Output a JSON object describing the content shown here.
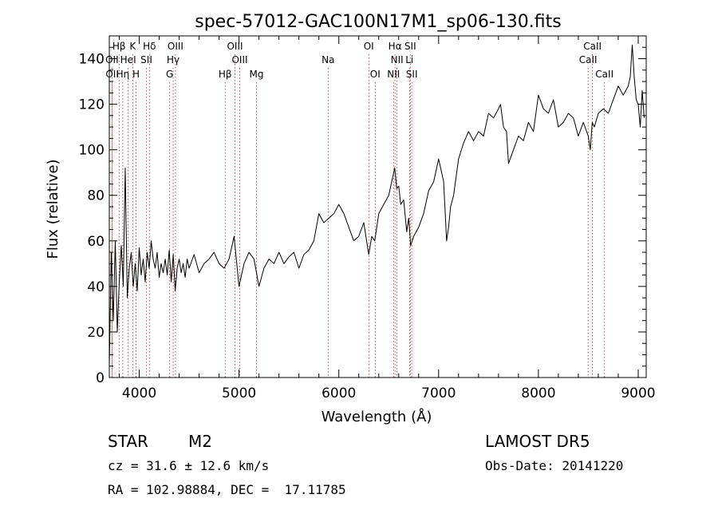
{
  "chart_data": {
    "type": "line",
    "title": "spec-57012-GAC100N17M1_sp06-130.fits",
    "xlabel": "Wavelength (Å)",
    "ylabel": "Flux (relative)",
    "xlim": [
      3700,
      9080
    ],
    "ylim": [
      0,
      150
    ],
    "xticks": [
      4000,
      5000,
      6000,
      7000,
      8000,
      9000
    ],
    "yticks": [
      0,
      20,
      40,
      60,
      80,
      100,
      120,
      140
    ],
    "grid": false,
    "line_color": "#000000",
    "marker_color": "#b22222",
    "spectral_lines": [
      {
        "label": "Hβ",
        "x": 3798,
        "row": 1
      },
      {
        "label": "K",
        "x": 3934,
        "row": 1
      },
      {
        "label": "Hδ",
        "x": 4102,
        "row": 1
      },
      {
        "label": "OIII",
        "x": 4363,
        "row": 1
      },
      {
        "label": "OIII",
        "x": 4959,
        "row": 1
      },
      {
        "label": "OI",
        "x": 6300,
        "row": 1
      },
      {
        "label": "Hα",
        "x": 6563,
        "row": 1
      },
      {
        "label": "SII",
        "x": 6716,
        "row": 1
      },
      {
        "label": "CaII",
        "x": 8542,
        "row": 1
      },
      {
        "label": "OII",
        "x": 3727,
        "row": 2
      },
      {
        "label": "HeI",
        "x": 3889,
        "row": 2
      },
      {
        "label": "SII",
        "x": 4072,
        "row": 2
      },
      {
        "label": "Hγ",
        "x": 4340,
        "row": 2
      },
      {
        "label": "OIII",
        "x": 5007,
        "row": 2
      },
      {
        "label": "Na",
        "x": 5893,
        "row": 2
      },
      {
        "label": "NII",
        "x": 6583,
        "row": 2
      },
      {
        "label": "Li",
        "x": 6708,
        "row": 2
      },
      {
        "label": "CaII",
        "x": 8498,
        "row": 2
      },
      {
        "label": "OII",
        "x": 3729,
        "row": 3
      },
      {
        "label": "Hη",
        "x": 3835,
        "row": 3
      },
      {
        "label": "H",
        "x": 3968,
        "row": 3
      },
      {
        "label": "G",
        "x": 4305,
        "row": 3
      },
      {
        "label": "Hβ",
        "x": 4861,
        "row": 3
      },
      {
        "label": "Mg",
        "x": 5175,
        "row": 3
      },
      {
        "label": "OI",
        "x": 6364,
        "row": 3
      },
      {
        "label": "NII",
        "x": 6548,
        "row": 3
      },
      {
        "label": "SII",
        "x": 6731,
        "row": 3
      },
      {
        "label": "CaII",
        "x": 8662,
        "row": 3
      }
    ],
    "series": [
      {
        "x": [
          3700,
          3720,
          3740,
          3760,
          3780,
          3800,
          3820,
          3840,
          3860,
          3880,
          3900,
          3920,
          3940,
          3960,
          3980,
          4000,
          4020,
          4040,
          4060,
          4080,
          4100,
          4120,
          4140,
          4160,
          4180,
          4200,
          4220,
          4240,
          4260,
          4280,
          4300,
          4320,
          4340,
          4360,
          4380,
          4400,
          4420,
          4440,
          4460,
          4480,
          4500,
          4550,
          4600,
          4650,
          4700,
          4750,
          4800,
          4850,
          4900,
          4950,
          5000,
          5050,
          5100,
          5150,
          5200,
          5250,
          5300,
          5350,
          5400,
          5450,
          5500,
          5550,
          5600,
          5650,
          5700,
          5750,
          5800,
          5850,
          5900,
          5950,
          6000,
          6050,
          6100,
          6150,
          6200,
          6250,
          6300,
          6330,
          6360,
          6400,
          6450,
          6500,
          6530,
          6560,
          6580,
          6600,
          6620,
          6650,
          6680,
          6700,
          6720,
          6750,
          6800,
          6850,
          6900,
          6950,
          7000,
          7050,
          7080,
          7100,
          7120,
          7150,
          7200,
          7250,
          7300,
          7350,
          7400,
          7450,
          7500,
          7550,
          7600,
          7620,
          7650,
          7680,
          7700,
          7750,
          7800,
          7850,
          7900,
          7950,
          8000,
          8050,
          8100,
          8150,
          8200,
          8250,
          8300,
          8350,
          8400,
          8450,
          8500,
          8520,
          8540,
          8560,
          8600,
          8650,
          8700,
          8750,
          8800,
          8850,
          8900,
          8920,
          8940,
          8960,
          8980,
          9000,
          9020,
          9040,
          9060
        ],
        "values": [
          5,
          55,
          25,
          60,
          20,
          42,
          58,
          40,
          92,
          35,
          48,
          55,
          40,
          50,
          38,
          57,
          45,
          52,
          42,
          55,
          48,
          60,
          52,
          48,
          55,
          44,
          50,
          46,
          52,
          45,
          56,
          42,
          54,
          38,
          48,
          52,
          46,
          50,
          44,
          52,
          48,
          54,
          46,
          50,
          52,
          55,
          50,
          48,
          52,
          62,
          40,
          50,
          55,
          52,
          40,
          48,
          52,
          50,
          55,
          50,
          53,
          55,
          48,
          54,
          56,
          60,
          72,
          68,
          70,
          72,
          76,
          72,
          66,
          60,
          62,
          68,
          54,
          62,
          60,
          72,
          76,
          80,
          86,
          92,
          83,
          84,
          76,
          78,
          64,
          70,
          58,
          62,
          66,
          72,
          82,
          86,
          96,
          86,
          60,
          66,
          75,
          80,
          96,
          103,
          108,
          104,
          108,
          106,
          116,
          114,
          118,
          120,
          110,
          108,
          94,
          100,
          106,
          104,
          112,
          108,
          124,
          118,
          116,
          122,
          110,
          112,
          116,
          114,
          106,
          112,
          106,
          100,
          112,
          110,
          116,
          118,
          116,
          122,
          128,
          124,
          128,
          132,
          146,
          132,
          122,
          120,
          110,
          126,
          114
        ]
      }
    ]
  },
  "footer": {
    "star_label": "STAR",
    "subclass": "M2",
    "survey": "LAMOST DR5",
    "cz": "cz = 31.6 ± 12.6 km/s",
    "obs_date": "Obs-Date: 20141220",
    "coords": "RA = 102.98884, DEC =  17.11785"
  }
}
